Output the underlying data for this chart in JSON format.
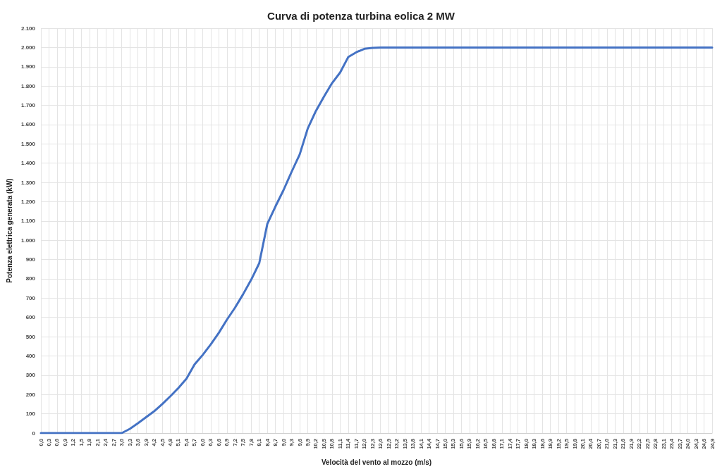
{
  "chart_data": {
    "type": "line",
    "title": "Curva di potenza turbina eolica 2 MW",
    "xlabel": "Velocità del vento al mozzo (m/s)",
    "ylabel": "Potenza elettrica generata (kW)",
    "categories": [
      "0,0",
      "0,3",
      "0,6",
      "0,9",
      "1,2",
      "1,5",
      "1,8",
      "2,1",
      "2,4",
      "2,7",
      "3,0",
      "3,3",
      "3,6",
      "3,9",
      "4,2",
      "4,5",
      "4,8",
      "5,1",
      "5,4",
      "5,7",
      "6,0",
      "6,3",
      "6,6",
      "6,9",
      "7,2",
      "7,5",
      "7,8",
      "8,1",
      "8,4",
      "8,7",
      "9,0",
      "9,3",
      "9,6",
      "9,9",
      "10,2",
      "10,5",
      "10,8",
      "11,1",
      "11,4",
      "11,7",
      "12,0",
      "12,3",
      "12,6",
      "12,9",
      "13,2",
      "13,5",
      "13,8",
      "14,1",
      "14,4",
      "14,7",
      "15,0",
      "15,3",
      "15,6",
      "15,9",
      "16,2",
      "16,5",
      "16,8",
      "17,1",
      "17,4",
      "17,7",
      "18,0",
      "18,3",
      "18,6",
      "18,9",
      "19,2",
      "19,5",
      "19,8",
      "20,1",
      "20,4",
      "20,7",
      "21,0",
      "21,3",
      "21,6",
      "21,9",
      "22,2",
      "22,5",
      "22,8",
      "23,1",
      "23,4",
      "23,7",
      "24,0",
      "24,3",
      "24,6",
      "24,9"
    ],
    "series": [
      {
        "color": "#4472c4",
        "values": [
          0,
          0,
          0,
          0,
          0,
          0,
          0,
          0,
          0,
          0,
          0,
          22,
          51,
          82,
          113,
          150,
          191,
          234,
          282,
          356,
          405,
          460,
          520,
          588,
          650,
          720,
          795,
          881,
          1085,
          1175,
          1260,
          1355,
          1445,
          1580,
          1670,
          1745,
          1815,
          1870,
          1950,
          1975,
          1993,
          1998,
          2000,
          2000,
          2000,
          2000,
          2000,
          2000,
          2000,
          2000,
          2000,
          2000,
          2000,
          2000,
          2000,
          2000,
          2000,
          2000,
          2000,
          2000,
          2000,
          2000,
          2000,
          2000,
          2000,
          2000,
          2000,
          2000,
          2000,
          2000,
          2000,
          2000,
          2000,
          2000,
          2000,
          2000,
          2000,
          2000,
          2000,
          2000,
          2000,
          2000,
          2000,
          2000
        ]
      }
    ],
    "ylim": [
      0,
      2100
    ],
    "yticks": [
      0,
      100,
      200,
      300,
      400,
      500,
      600,
      700,
      800,
      900,
      {
        "value": 1000,
        "label": "1.000"
      },
      {
        "value": 1100,
        "label": "1.100"
      },
      {
        "value": 1200,
        "label": "1.200"
      },
      {
        "value": 1300,
        "label": "1.300"
      },
      {
        "value": 1400,
        "label": "1.400"
      },
      {
        "value": 1500,
        "label": "1.500"
      },
      {
        "value": 1600,
        "label": "1.600"
      },
      {
        "value": 1700,
        "label": "1.700"
      },
      {
        "value": 1800,
        "label": "1.800"
      },
      {
        "value": 1900,
        "label": "1.900"
      },
      {
        "value": 2000,
        "label": "2.000"
      },
      {
        "value": 2100,
        "label": "2.100"
      }
    ],
    "grid": true,
    "marker": "none",
    "line_style": "solid"
  }
}
